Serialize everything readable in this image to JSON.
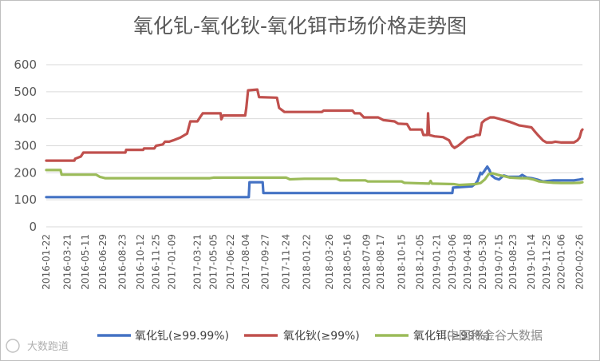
{
  "chart_data": {
    "type": "line",
    "title": "氧化钆-氧化钬-氧化铒市场价格走势图",
    "xlabel": "",
    "ylabel": "",
    "ylim": [
      0,
      600
    ],
    "yticks": [
      0,
      100,
      200,
      300,
      400,
      500,
      600
    ],
    "xlim": [
      "2016-01-22",
      "2020-03-05"
    ],
    "xticks": [
      "2016-01-22",
      "2016-03-21",
      "2016-05-11",
      "2016-06-29",
      "2016-08-23",
      "2016-10-12",
      "2016-11-25",
      "2017-01-09",
      "2017-03-21",
      "2017-05-05",
      "2017-06-22",
      "2017-08-04",
      "2017-09-27",
      "2017-11-24",
      "2018-01-22",
      "2018-03-26",
      "2018-05-16",
      "2018-07-09",
      "2018-08-17",
      "2018-10-15",
      "2018-12-05",
      "2019-01-21",
      "2019-03-06",
      "2019-04-18",
      "2019-05-30",
      "2019-07-15",
      "2019-08-23",
      "2019-10-14",
      "2019-11-25",
      "2020-01-06",
      "2020-02-26"
    ],
    "grid": "horizontal",
    "legend_position": "bottom",
    "series": [
      {
        "name": "氧化钆(≥99.99%)",
        "color": "#4472c4",
        "points": [
          [
            "2016-01-22",
            110
          ],
          [
            "2017-08-12",
            110
          ],
          [
            "2017-08-14",
            165
          ],
          [
            "2017-09-20",
            165
          ],
          [
            "2017-09-22",
            125
          ],
          [
            "2019-03-06",
            125
          ],
          [
            "2019-03-08",
            145
          ],
          [
            "2019-04-30",
            150
          ],
          [
            "2019-05-10",
            160
          ],
          [
            "2019-05-16",
            170
          ],
          [
            "2019-05-24",
            200
          ],
          [
            "2019-05-28",
            195
          ],
          [
            "2019-06-03",
            205
          ],
          [
            "2019-06-08",
            215
          ],
          [
            "2019-06-12",
            223
          ],
          [
            "2019-06-18",
            210
          ],
          [
            "2019-06-24",
            190
          ],
          [
            "2019-07-04",
            180
          ],
          [
            "2019-07-15",
            175
          ],
          [
            "2019-07-28",
            190
          ],
          [
            "2019-08-10",
            185
          ],
          [
            "2019-08-28",
            185
          ],
          [
            "2019-09-10",
            185
          ],
          [
            "2019-09-18",
            192
          ],
          [
            "2019-10-01",
            182
          ],
          [
            "2019-10-14",
            180
          ],
          [
            "2019-10-30",
            175
          ],
          [
            "2019-11-15",
            168
          ],
          [
            "2019-12-01",
            170
          ],
          [
            "2019-12-15",
            172
          ],
          [
            "2020-01-06",
            172
          ],
          [
            "2020-02-10",
            172
          ],
          [
            "2020-02-26",
            175
          ],
          [
            "2020-03-05",
            177
          ]
        ]
      },
      {
        "name": "氧化钬(≥99%)",
        "color": "#c0504d",
        "points": [
          [
            "2016-01-22",
            245
          ],
          [
            "2016-04-10",
            245
          ],
          [
            "2016-04-12",
            252
          ],
          [
            "2016-04-28",
            260
          ],
          [
            "2016-05-05",
            275
          ],
          [
            "2016-08-31",
            275
          ],
          [
            "2016-09-02",
            285
          ],
          [
            "2016-10-20",
            285
          ],
          [
            "2016-10-22",
            290
          ],
          [
            "2016-11-20",
            290
          ],
          [
            "2016-11-25",
            300
          ],
          [
            "2016-12-14",
            305
          ],
          [
            "2016-12-20",
            315
          ],
          [
            "2017-01-01",
            315
          ],
          [
            "2017-01-12",
            320
          ],
          [
            "2017-02-01",
            330
          ],
          [
            "2017-02-20",
            345
          ],
          [
            "2017-03-01",
            390
          ],
          [
            "2017-03-21",
            390
          ],
          [
            "2017-03-28",
            405
          ],
          [
            "2017-04-05",
            420
          ],
          [
            "2017-05-25",
            420
          ],
          [
            "2017-05-27",
            398
          ],
          [
            "2017-06-01",
            412
          ],
          [
            "2017-07-20",
            412
          ],
          [
            "2017-08-02",
            412
          ],
          [
            "2017-08-05",
            440
          ],
          [
            "2017-08-10",
            505
          ],
          [
            "2017-09-05",
            508
          ],
          [
            "2017-09-10",
            480
          ],
          [
            "2017-10-30",
            478
          ],
          [
            "2017-11-05",
            440
          ],
          [
            "2017-11-20",
            425
          ],
          [
            "2018-03-05",
            425
          ],
          [
            "2018-03-10",
            430
          ],
          [
            "2018-05-30",
            430
          ],
          [
            "2018-06-05",
            420
          ],
          [
            "2018-06-20",
            420
          ],
          [
            "2018-07-01",
            405
          ],
          [
            "2018-08-10",
            405
          ],
          [
            "2018-08-25",
            395
          ],
          [
            "2018-09-25",
            390
          ],
          [
            "2018-10-05",
            382
          ],
          [
            "2018-10-30",
            380
          ],
          [
            "2018-11-08",
            360
          ],
          [
            "2018-12-10",
            360
          ],
          [
            "2018-12-15",
            340
          ],
          [
            "2018-12-26",
            340
          ],
          [
            "2018-12-28",
            420
          ],
          [
            "2018-12-31",
            340
          ],
          [
            "2019-01-15",
            335
          ],
          [
            "2019-02-08",
            332
          ],
          [
            "2019-02-25",
            320
          ],
          [
            "2019-03-05",
            300
          ],
          [
            "2019-03-12",
            292
          ],
          [
            "2019-03-22",
            300
          ],
          [
            "2019-04-05",
            315
          ],
          [
            "2019-04-18",
            330
          ],
          [
            "2019-05-05",
            335
          ],
          [
            "2019-05-12",
            340
          ],
          [
            "2019-05-22",
            340
          ],
          [
            "2019-05-28",
            385
          ],
          [
            "2019-06-05",
            395
          ],
          [
            "2019-06-20",
            405
          ],
          [
            "2019-07-01",
            405
          ],
          [
            "2019-07-15",
            400
          ],
          [
            "2019-07-28",
            395
          ],
          [
            "2019-08-15",
            388
          ],
          [
            "2019-08-25",
            383
          ],
          [
            "2019-09-10",
            375
          ],
          [
            "2019-09-25",
            372
          ],
          [
            "2019-10-14",
            368
          ],
          [
            "2019-10-22",
            355
          ],
          [
            "2019-11-01",
            340
          ],
          [
            "2019-11-15",
            320
          ],
          [
            "2019-11-25",
            312
          ],
          [
            "2019-12-10",
            312
          ],
          [
            "2019-12-20",
            315
          ],
          [
            "2020-01-06",
            312
          ],
          [
            "2020-02-10",
            312
          ],
          [
            "2020-02-20",
            320
          ],
          [
            "2020-02-26",
            330
          ],
          [
            "2020-03-02",
            355
          ],
          [
            "2020-03-05",
            360
          ]
        ]
      },
      {
        "name": "氧化铒(≥99%)",
        "color": "#9bbb59",
        "points": [
          [
            "2016-01-22",
            210
          ],
          [
            "2016-03-02",
            210
          ],
          [
            "2016-03-05",
            193
          ],
          [
            "2016-06-10",
            193
          ],
          [
            "2016-06-20",
            185
          ],
          [
            "2016-07-05",
            180
          ],
          [
            "2017-04-25",
            180
          ],
          [
            "2017-05-05",
            182
          ],
          [
            "2017-11-25",
            182
          ],
          [
            "2017-12-05",
            176
          ],
          [
            "2018-01-15",
            178
          ],
          [
            "2018-04-15",
            178
          ],
          [
            "2018-04-25",
            172
          ],
          [
            "2018-07-05",
            172
          ],
          [
            "2018-07-12",
            168
          ],
          [
            "2018-10-15",
            168
          ],
          [
            "2018-10-22",
            163
          ],
          [
            "2018-12-31",
            160
          ],
          [
            "2019-01-04",
            170
          ],
          [
            "2019-01-08",
            160
          ],
          [
            "2019-03-10",
            158
          ],
          [
            "2019-03-25",
            155
          ],
          [
            "2019-05-10",
            158
          ],
          [
            "2019-05-24",
            162
          ],
          [
            "2019-06-05",
            175
          ],
          [
            "2019-06-16",
            195
          ],
          [
            "2019-06-28",
            198
          ],
          [
            "2019-07-12",
            192
          ],
          [
            "2019-07-28",
            188
          ],
          [
            "2019-08-15",
            182
          ],
          [
            "2019-09-15",
            180
          ],
          [
            "2019-10-01",
            180
          ],
          [
            "2019-10-20",
            175
          ],
          [
            "2019-11-05",
            168
          ],
          [
            "2019-11-25",
            165
          ],
          [
            "2019-12-15",
            163
          ],
          [
            "2020-01-06",
            162
          ],
          [
            "2020-02-05",
            162
          ],
          [
            "2020-02-26",
            163
          ],
          [
            "2020-03-05",
            165
          ]
        ]
      }
    ]
  },
  "watermarks": {
    "left": "大数跑道",
    "right": "中国稀金谷大数据"
  },
  "colors": {
    "grid": "#d9d9d9",
    "axis_text": "#595959"
  }
}
